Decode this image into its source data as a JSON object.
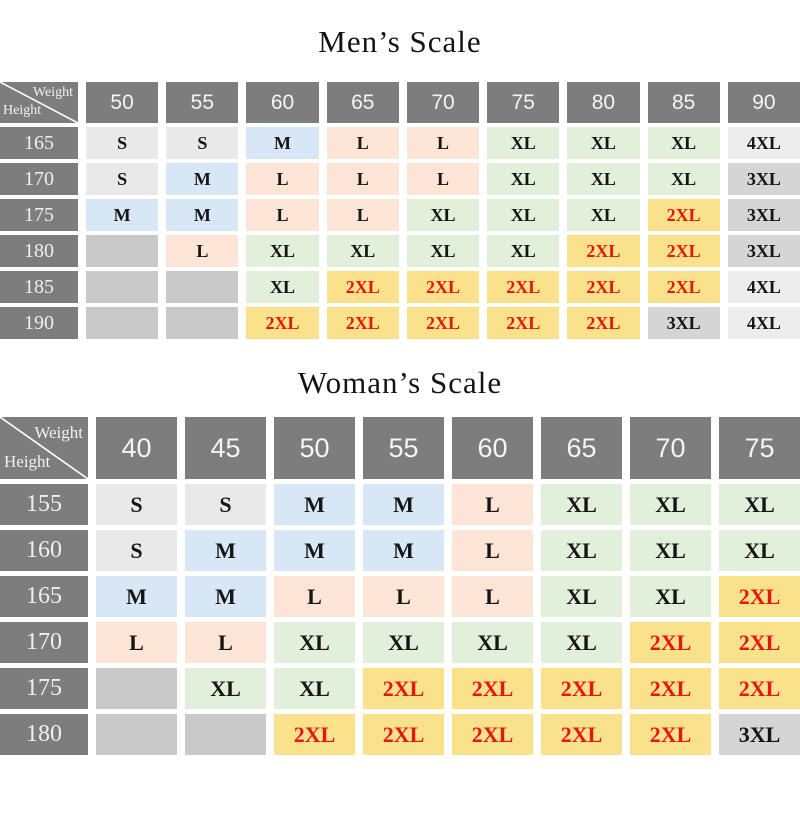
{
  "colors": {
    "header_bg": "#7d7d7d",
    "header_text": "#f4f4f4",
    "title_text": "#141414"
  },
  "corner": {
    "weight_label": "Weight",
    "height_label": "Height"
  },
  "value_styles": {
    "S": {
      "bg": "#e9e9e9",
      "fg": "#151515"
    },
    "M": {
      "bg": "#d8e7f5",
      "fg": "#151515"
    },
    "L": {
      "bg": "#fce4d6",
      "fg": "#151515"
    },
    "XL": {
      "bg": "#e2efda",
      "fg": "#151515"
    },
    "2XL": {
      "bg": "#fae28c",
      "fg": "#e8170e"
    },
    "3XL": {
      "bg": "#d5d5d5",
      "fg": "#151515"
    },
    "4XL": {
      "bg": "#ededed",
      "fg": "#151515"
    },
    "empty": {
      "bg": "#c9c9c9",
      "fg": "#151515"
    }
  },
  "chart_data": [
    {
      "type": "table",
      "title": "Men’s Scale",
      "corner_top": "Weight",
      "corner_bottom": "Height",
      "weights": [
        "50",
        "55",
        "60",
        "65",
        "70",
        "75",
        "80",
        "85",
        "90"
      ],
      "rows": [
        {
          "height": "165",
          "cells": [
            "S",
            "S",
            "M",
            "L",
            "L",
            "XL",
            "XL",
            "XL",
            "4XL"
          ]
        },
        {
          "height": "170",
          "cells": [
            "S",
            "M",
            "L",
            "L",
            "L",
            "XL",
            "XL",
            "XL",
            "3XL"
          ]
        },
        {
          "height": "175",
          "cells": [
            "M",
            "M",
            "L",
            "L",
            "XL",
            "XL",
            "XL",
            "2XL",
            "3XL"
          ]
        },
        {
          "height": "180",
          "cells": [
            "",
            "L",
            "XL",
            "XL",
            "XL",
            "XL",
            "2XL",
            "2XL",
            "3XL"
          ]
        },
        {
          "height": "185",
          "cells": [
            "",
            "",
            "XL",
            "2XL",
            "2XL",
            "2XL",
            "2XL",
            "2XL",
            "4XL"
          ]
        },
        {
          "height": "190",
          "cells": [
            "",
            "",
            "2XL",
            "2XL",
            "2XL",
            "2XL",
            "2XL",
            "3XL",
            "4XL"
          ]
        }
      ]
    },
    {
      "type": "table",
      "title": "Woman’s Scale",
      "corner_top": "Weight",
      "corner_bottom": "Height",
      "weights": [
        "40",
        "45",
        "50",
        "55",
        "60",
        "65",
        "70",
        "75"
      ],
      "rows": [
        {
          "height": "155",
          "cells": [
            "S",
            "S",
            "M",
            "M",
            "L",
            "XL",
            "XL",
            "XL"
          ]
        },
        {
          "height": "160",
          "cells": [
            "S",
            "M",
            "M",
            "M",
            "L",
            "XL",
            "XL",
            "XL"
          ]
        },
        {
          "height": "165",
          "cells": [
            "M",
            "M",
            "L",
            "L",
            "L",
            "XL",
            "XL",
            "2XL"
          ]
        },
        {
          "height": "170",
          "cells": [
            "L",
            "L",
            "XL",
            "XL",
            "XL",
            "XL",
            "2XL",
            "2XL"
          ]
        },
        {
          "height": "175",
          "cells": [
            "",
            "XL",
            "XL",
            "2XL",
            "2XL",
            "2XL",
            "2XL",
            "2XL"
          ]
        },
        {
          "height": "180",
          "cells": [
            "",
            "",
            "2XL",
            "2XL",
            "2XL",
            "2XL",
            "2XL",
            "3XL"
          ]
        }
      ]
    }
  ]
}
